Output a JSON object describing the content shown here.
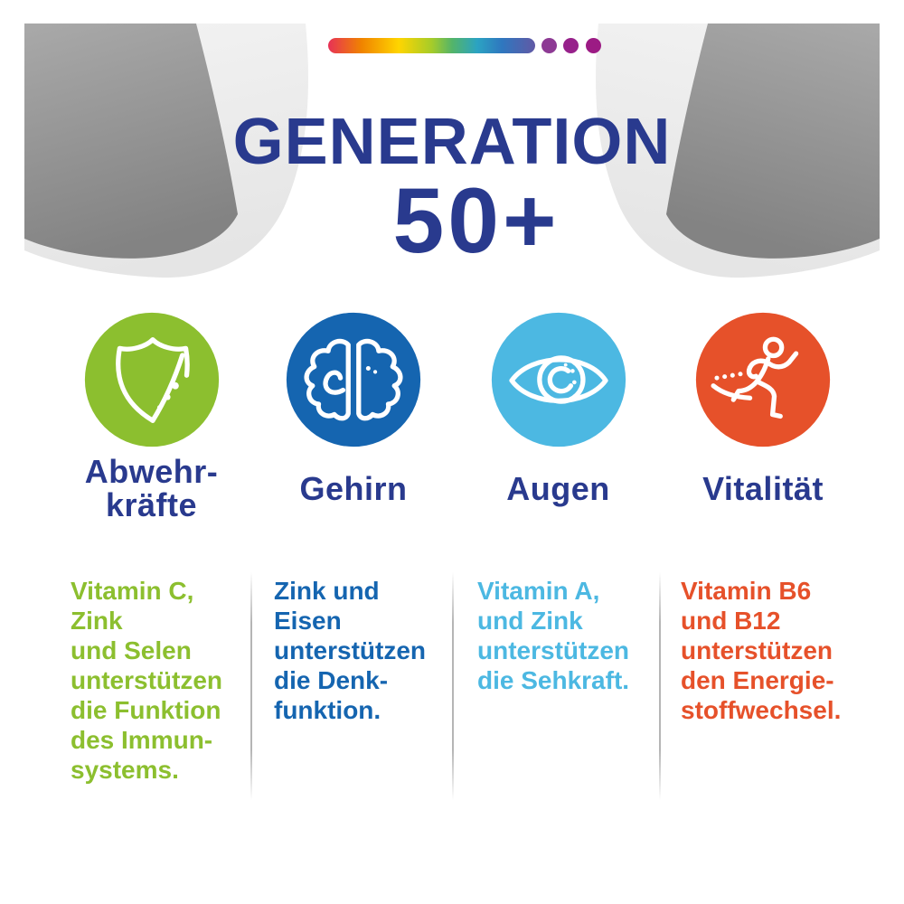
{
  "header": {
    "title_line1": "GENERATION",
    "title_line2": "50+",
    "rainbow": {
      "gradient": [
        "#e73157 0%",
        "#f08300 16%",
        "#ffd500 34%",
        "#a6cc29 50%",
        "#53b46a 60%",
        "#2ba3c2 72%",
        "#2f77bf 84%",
        "#6159a5 100%"
      ],
      "dot_colors": [
        "#8d3a94",
        "#97218b",
        "#9c1b84"
      ]
    }
  },
  "colors": {
    "title_navy": "#293a8e",
    "immune_green": "#8cbf2f",
    "brain_blue": "#1565b0",
    "eye_lightblue": "#4cb8e2",
    "vitality_orange": "#e6512a",
    "corner_gray_dark": "#a9a9a9",
    "corner_gray_light": "#f2f2f2",
    "divider_gray": "#b5b5b5"
  },
  "columns": [
    {
      "icon": "shield-icon",
      "color": "#8cbf2f",
      "label_lines": [
        "Abwehr-",
        "kräfte"
      ],
      "text_lines": [
        "Vitamin C,",
        "Zink",
        "und Selen",
        "unterstützen",
        "die Funktion",
        "des Immun-",
        "systems."
      ]
    },
    {
      "icon": "brain-icon",
      "color": "#1565b0",
      "label_lines": [
        "Gehirn"
      ],
      "text_lines": [
        "Zink und",
        "Eisen",
        "unterstützen",
        "die Denk-",
        "funktion."
      ]
    },
    {
      "icon": "eye-icon",
      "color": "#4cb8e2",
      "label_lines": [
        "Augen"
      ],
      "text_lines": [
        "Vitamin A,",
        "und Zink",
        "unterstützen",
        "die Sehkraft."
      ]
    },
    {
      "icon": "runner-icon",
      "color": "#e6512a",
      "label_lines": [
        "Vitalität"
      ],
      "text_lines": [
        "Vitamin B6",
        "und B12",
        "unterstützen",
        "den Energie-",
        "stoffwechsel."
      ]
    }
  ]
}
